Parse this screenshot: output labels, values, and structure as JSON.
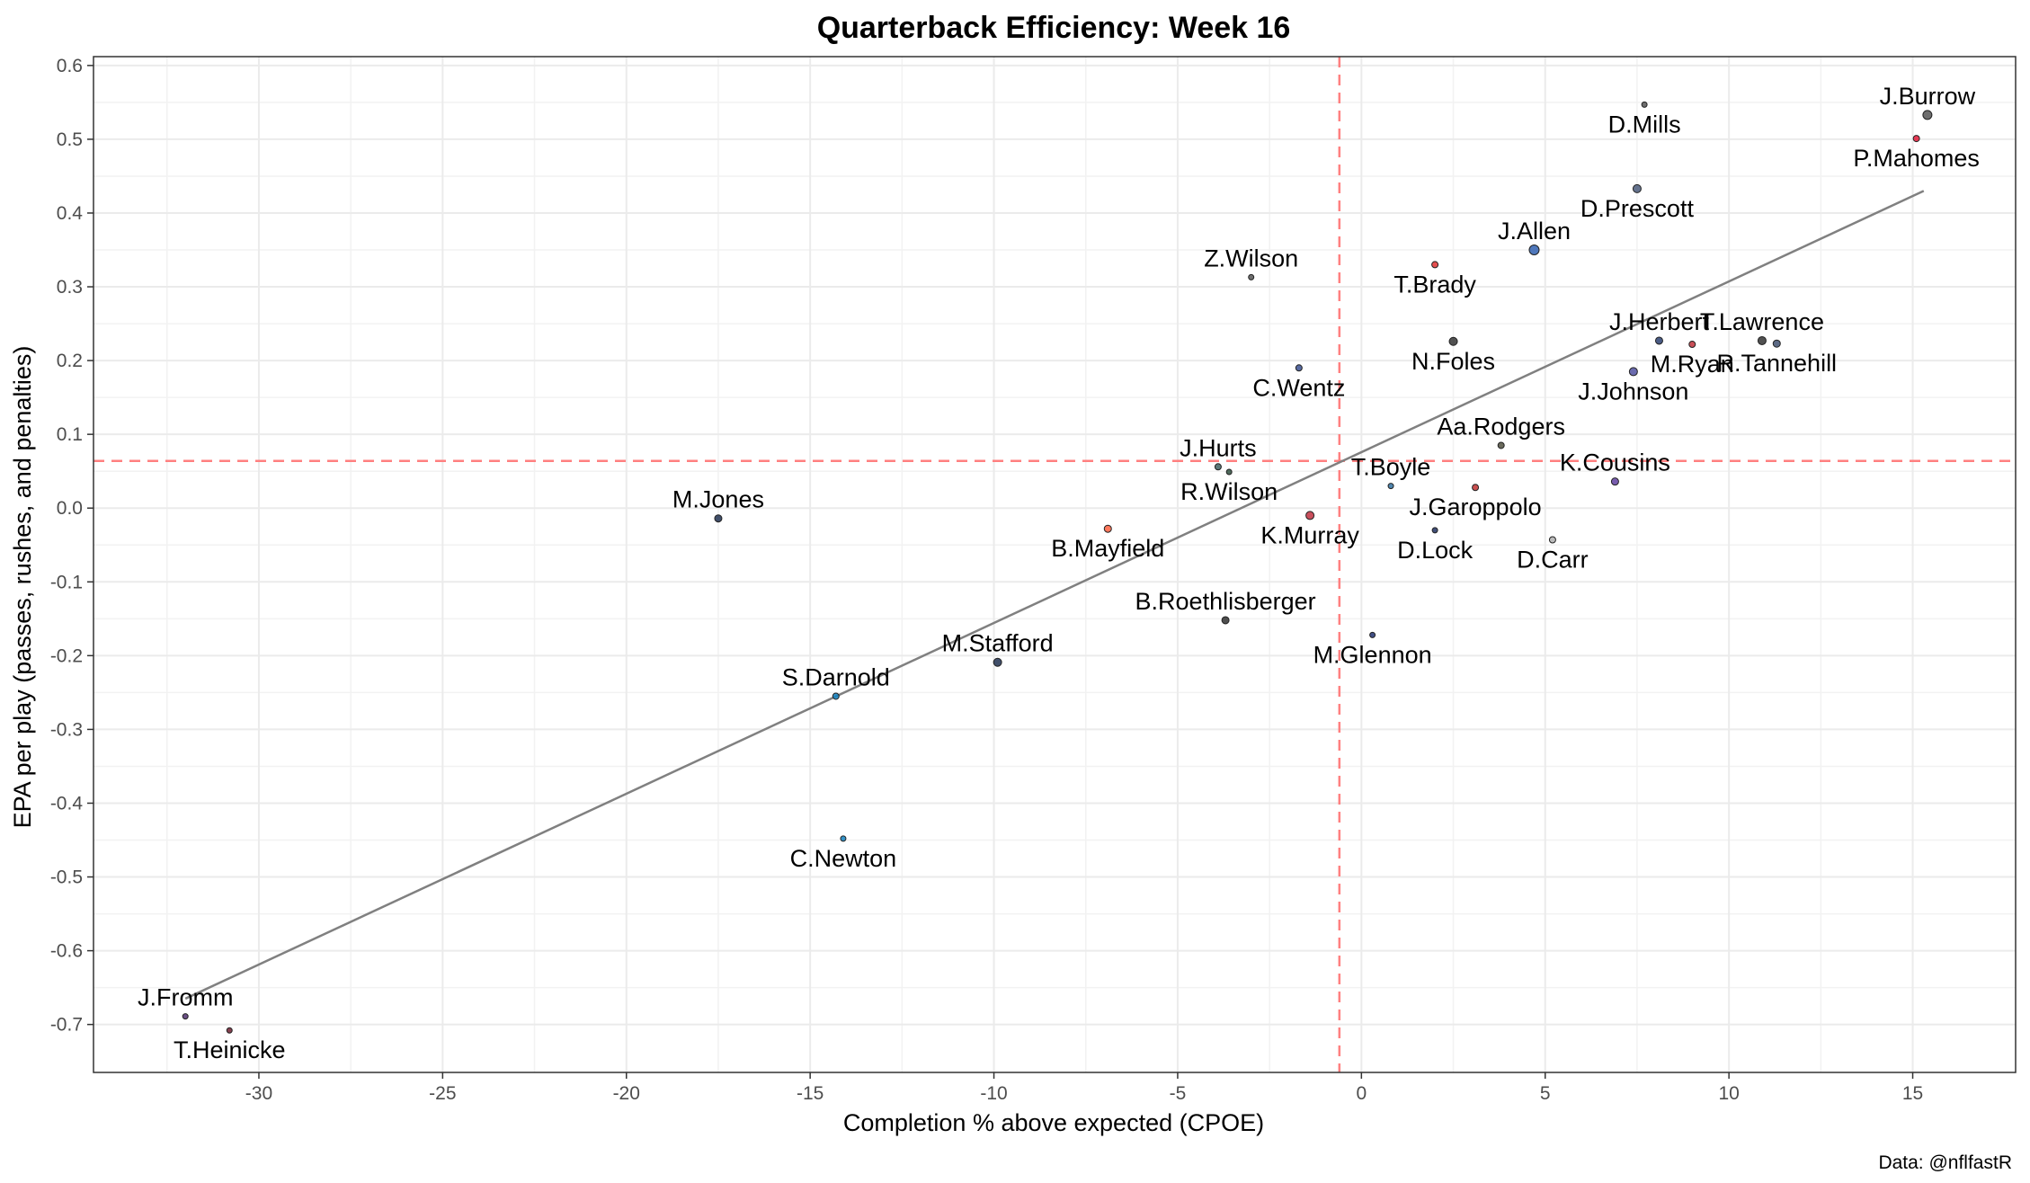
{
  "chart_data": {
    "type": "scatter",
    "title": "Quarterback Efficiency: Week 16",
    "xlabel": "Completion % above expected (CPOE)",
    "ylabel": "EPA per play (passes, rushes, and penalties)",
    "caption": "Data: @nflfastR",
    "xlim": [
      -34.5,
      17.8
    ],
    "ylim": [
      -0.765,
      0.612
    ],
    "xticks": [
      -30,
      -25,
      -20,
      -15,
      -10,
      -5,
      0,
      5,
      10,
      15
    ],
    "yticks": [
      -0.7,
      -0.6,
      -0.5,
      -0.4,
      -0.3,
      -0.2,
      -0.1,
      0.0,
      0.1,
      0.2,
      0.3,
      0.4,
      0.5,
      0.6
    ],
    "ytick_labels": [
      "-0.7",
      "-0.6",
      "-0.5",
      "-0.4",
      "-0.3",
      "-0.2",
      "-0.1",
      "0.0",
      "0.1",
      "0.2",
      "0.3",
      "0.4",
      "0.5",
      "0.6"
    ],
    "grid": true,
    "reference_lines": {
      "mean_cpoe": -0.6,
      "mean_epa": 0.064,
      "color": "#ff8080"
    },
    "trend_line": {
      "x": [
        -32.0,
        15.3
      ],
      "y": [
        -0.665,
        0.43
      ],
      "color": "#808080"
    },
    "points": [
      {
        "name": "J.Burrow",
        "x": 15.4,
        "y": 0.533,
        "size": 5,
        "color": "#555555",
        "label_pos": "above"
      },
      {
        "name": "P.Mahomes",
        "x": 15.1,
        "y": 0.501,
        "size": 3.5,
        "color": "#e31837",
        "label_pos": "below"
      },
      {
        "name": "D.Mills",
        "x": 7.7,
        "y": 0.547,
        "size": 3,
        "color": "#555555",
        "label_pos": "below"
      },
      {
        "name": "D.Prescott",
        "x": 7.5,
        "y": 0.433,
        "size": 4.5,
        "color": "#4a5a7a",
        "label_pos": "below"
      },
      {
        "name": "J.Allen",
        "x": 4.7,
        "y": 0.35,
        "size": 5.5,
        "color": "#3060b0",
        "label_pos": "above"
      },
      {
        "name": "T.Brady",
        "x": 2.0,
        "y": 0.33,
        "size": 3.5,
        "color": "#e03030",
        "label_pos": "below"
      },
      {
        "name": "Z.Wilson",
        "x": -3.0,
        "y": 0.313,
        "size": 3,
        "color": "#555555",
        "label_pos": "above"
      },
      {
        "name": "N.Foles",
        "x": 2.5,
        "y": 0.226,
        "size": 4.5,
        "color": "#333333",
        "label_pos": "below"
      },
      {
        "name": "J.Herbert",
        "x": 8.1,
        "y": 0.227,
        "size": 4,
        "color": "#2a4070",
        "label_pos": "above"
      },
      {
        "name": "M.Ryan",
        "x": 9.0,
        "y": 0.222,
        "size": 3.5,
        "color": "#c0303a",
        "label_pos": "below"
      },
      {
        "name": "T.Lawrence",
        "x": 10.9,
        "y": 0.227,
        "size": 4.5,
        "color": "#333333",
        "label_pos": "above"
      },
      {
        "name": "R.Tannehill",
        "x": 11.3,
        "y": 0.223,
        "size": 4,
        "color": "#405070",
        "label_pos": "below"
      },
      {
        "name": "J.Johnson",
        "x": 7.4,
        "y": 0.185,
        "size": 4.5,
        "color": "#5050a0",
        "label_pos": "below"
      },
      {
        "name": "C.Wentz",
        "x": -1.7,
        "y": 0.19,
        "size": 3.5,
        "color": "#3a5090",
        "label_pos": "below"
      },
      {
        "name": "Aa.Rodgers",
        "x": 3.8,
        "y": 0.085,
        "size": 3.5,
        "color": "#505040",
        "label_pos": "above"
      },
      {
        "name": "J.Hurts",
        "x": -3.9,
        "y": 0.056,
        "size": 3.5,
        "color": "#406060",
        "label_pos": "above"
      },
      {
        "name": "R.Wilson",
        "x": -3.6,
        "y": 0.049,
        "size": 3,
        "color": "#305040",
        "label_pos": "below"
      },
      {
        "name": "T.Boyle",
        "x": 0.8,
        "y": 0.03,
        "size": 3,
        "color": "#3070a0",
        "label_pos": "above"
      },
      {
        "name": "K.Cousins",
        "x": 6.9,
        "y": 0.036,
        "size": 4,
        "color": "#6040a0",
        "label_pos": "above"
      },
      {
        "name": "J.Garoppolo",
        "x": 3.1,
        "y": 0.028,
        "size": 3.5,
        "color": "#c03030",
        "label_pos": "below"
      },
      {
        "name": "K.Murray",
        "x": -1.4,
        "y": -0.01,
        "size": 4.5,
        "color": "#c03040",
        "label_pos": "below"
      },
      {
        "name": "M.Jones",
        "x": -17.5,
        "y": -0.014,
        "size": 4,
        "color": "#203050",
        "label_pos": "above"
      },
      {
        "name": "B.Mayfield",
        "x": -6.9,
        "y": -0.028,
        "size": 4,
        "color": "#ff6040",
        "label_pos": "below"
      },
      {
        "name": "D.Lock",
        "x": 2.0,
        "y": -0.03,
        "size": 3,
        "color": "#203060",
        "label_pos": "below"
      },
      {
        "name": "D.Carr",
        "x": 5.2,
        "y": -0.043,
        "size": 3.5,
        "color": "#b0b0b0",
        "label_pos": "below"
      },
      {
        "name": "B.Roethlisberger",
        "x": -3.7,
        "y": -0.152,
        "size": 4,
        "color": "#303030",
        "label_pos": "above"
      },
      {
        "name": "M.Glennon",
        "x": 0.3,
        "y": -0.172,
        "size": 3,
        "color": "#203070",
        "label_pos": "below"
      },
      {
        "name": "M.Stafford",
        "x": -9.9,
        "y": -0.209,
        "size": 4.5,
        "color": "#203050",
        "label_pos": "above"
      },
      {
        "name": "S.Darnold",
        "x": -14.3,
        "y": -0.255,
        "size": 3.5,
        "color": "#1080c0",
        "label_pos": "above"
      },
      {
        "name": "C.Newton",
        "x": -14.1,
        "y": -0.448,
        "size": 3,
        "color": "#1080c0",
        "label_pos": "below"
      },
      {
        "name": "J.Fromm",
        "x": -32.0,
        "y": -0.689,
        "size": 3,
        "color": "#503070",
        "label_pos": "above"
      },
      {
        "name": "T.Heinicke",
        "x": -30.8,
        "y": -0.708,
        "size": 3,
        "color": "#702030",
        "label_pos": "below"
      }
    ]
  }
}
